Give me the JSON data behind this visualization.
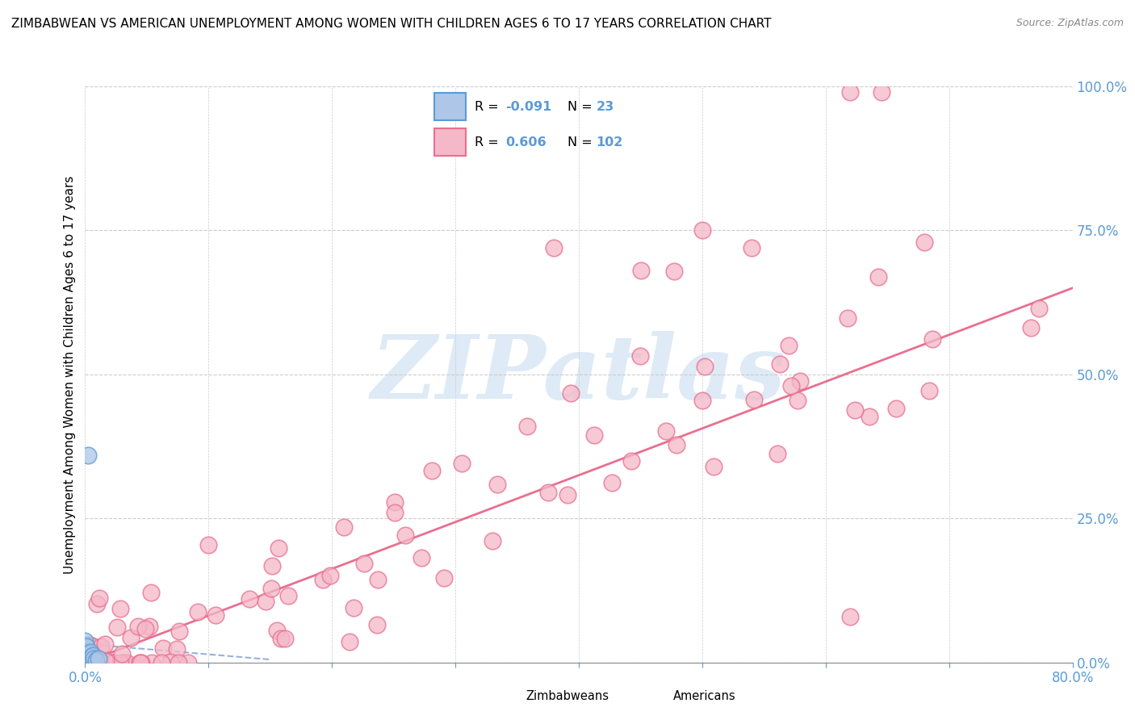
{
  "title": "ZIMBABWEAN VS AMERICAN UNEMPLOYMENT AMONG WOMEN WITH CHILDREN AGES 6 TO 17 YEARS CORRELATION CHART",
  "source": "Source: ZipAtlas.com",
  "ylabel": "Unemployment Among Women with Children Ages 6 to 17 years",
  "x_min": 0.0,
  "x_max": 0.8,
  "y_min": 0.0,
  "y_max": 1.0,
  "y_ticks_right": [
    0.0,
    0.25,
    0.5,
    0.75,
    1.0
  ],
  "y_tick_labels_right": [
    "0.0%",
    "25.0%",
    "50.0%",
    "75.0%",
    "100.0%"
  ],
  "zimbabwean_R": -0.091,
  "zimbabwean_N": 23,
  "american_R": 0.606,
  "american_N": 102,
  "zim_fill_color": "#aec6e8",
  "zim_edge_color": "#5b9bd5",
  "am_fill_color": "#f4b8c8",
  "am_edge_color": "#e87090",
  "zim_line_color": "#88aadd",
  "am_line_color": "#e87090",
  "tick_color": "#5b9bd5",
  "grid_color": "#cccccc",
  "title_color": "#000000",
  "source_color": "#888888",
  "watermark_text": "ZIPatlas",
  "watermark_color": "#c8ddf0",
  "legend_border_color": "#cccccc",
  "legend_R_val_color": "#5b9bd5",
  "legend_N_val_color": "#5b9bd5",
  "bottom_legend_label1": "Zimbabweans",
  "bottom_legend_label2": "Americans",
  "zim_x": [
    0.0,
    0.0,
    0.0,
    0.0,
    0.0,
    0.0,
    0.0,
    0.0,
    0.0,
    0.001,
    0.001,
    0.001,
    0.002,
    0.002,
    0.003,
    0.003,
    0.004,
    0.004,
    0.005,
    0.006,
    0.007,
    0.009,
    0.011
  ],
  "zim_y": [
    0.0,
    0.005,
    0.008,
    0.012,
    0.016,
    0.02,
    0.025,
    0.03,
    0.038,
    0.01,
    0.018,
    0.028,
    0.008,
    0.36,
    0.005,
    0.015,
    0.008,
    0.018,
    0.01,
    0.012,
    0.006,
    0.003,
    0.006
  ],
  "am_trend_x0": 0.0,
  "am_trend_y0": 0.0,
  "am_trend_x1": 0.8,
  "am_trend_y1": 0.65,
  "zim_trend_x0": 0.0,
  "zim_trend_y0": 0.032,
  "zim_trend_x1": 0.15,
  "zim_trend_y1": 0.005,
  "marker_size": 220,
  "marker_lw": 1.2,
  "marker_alpha": 0.75
}
